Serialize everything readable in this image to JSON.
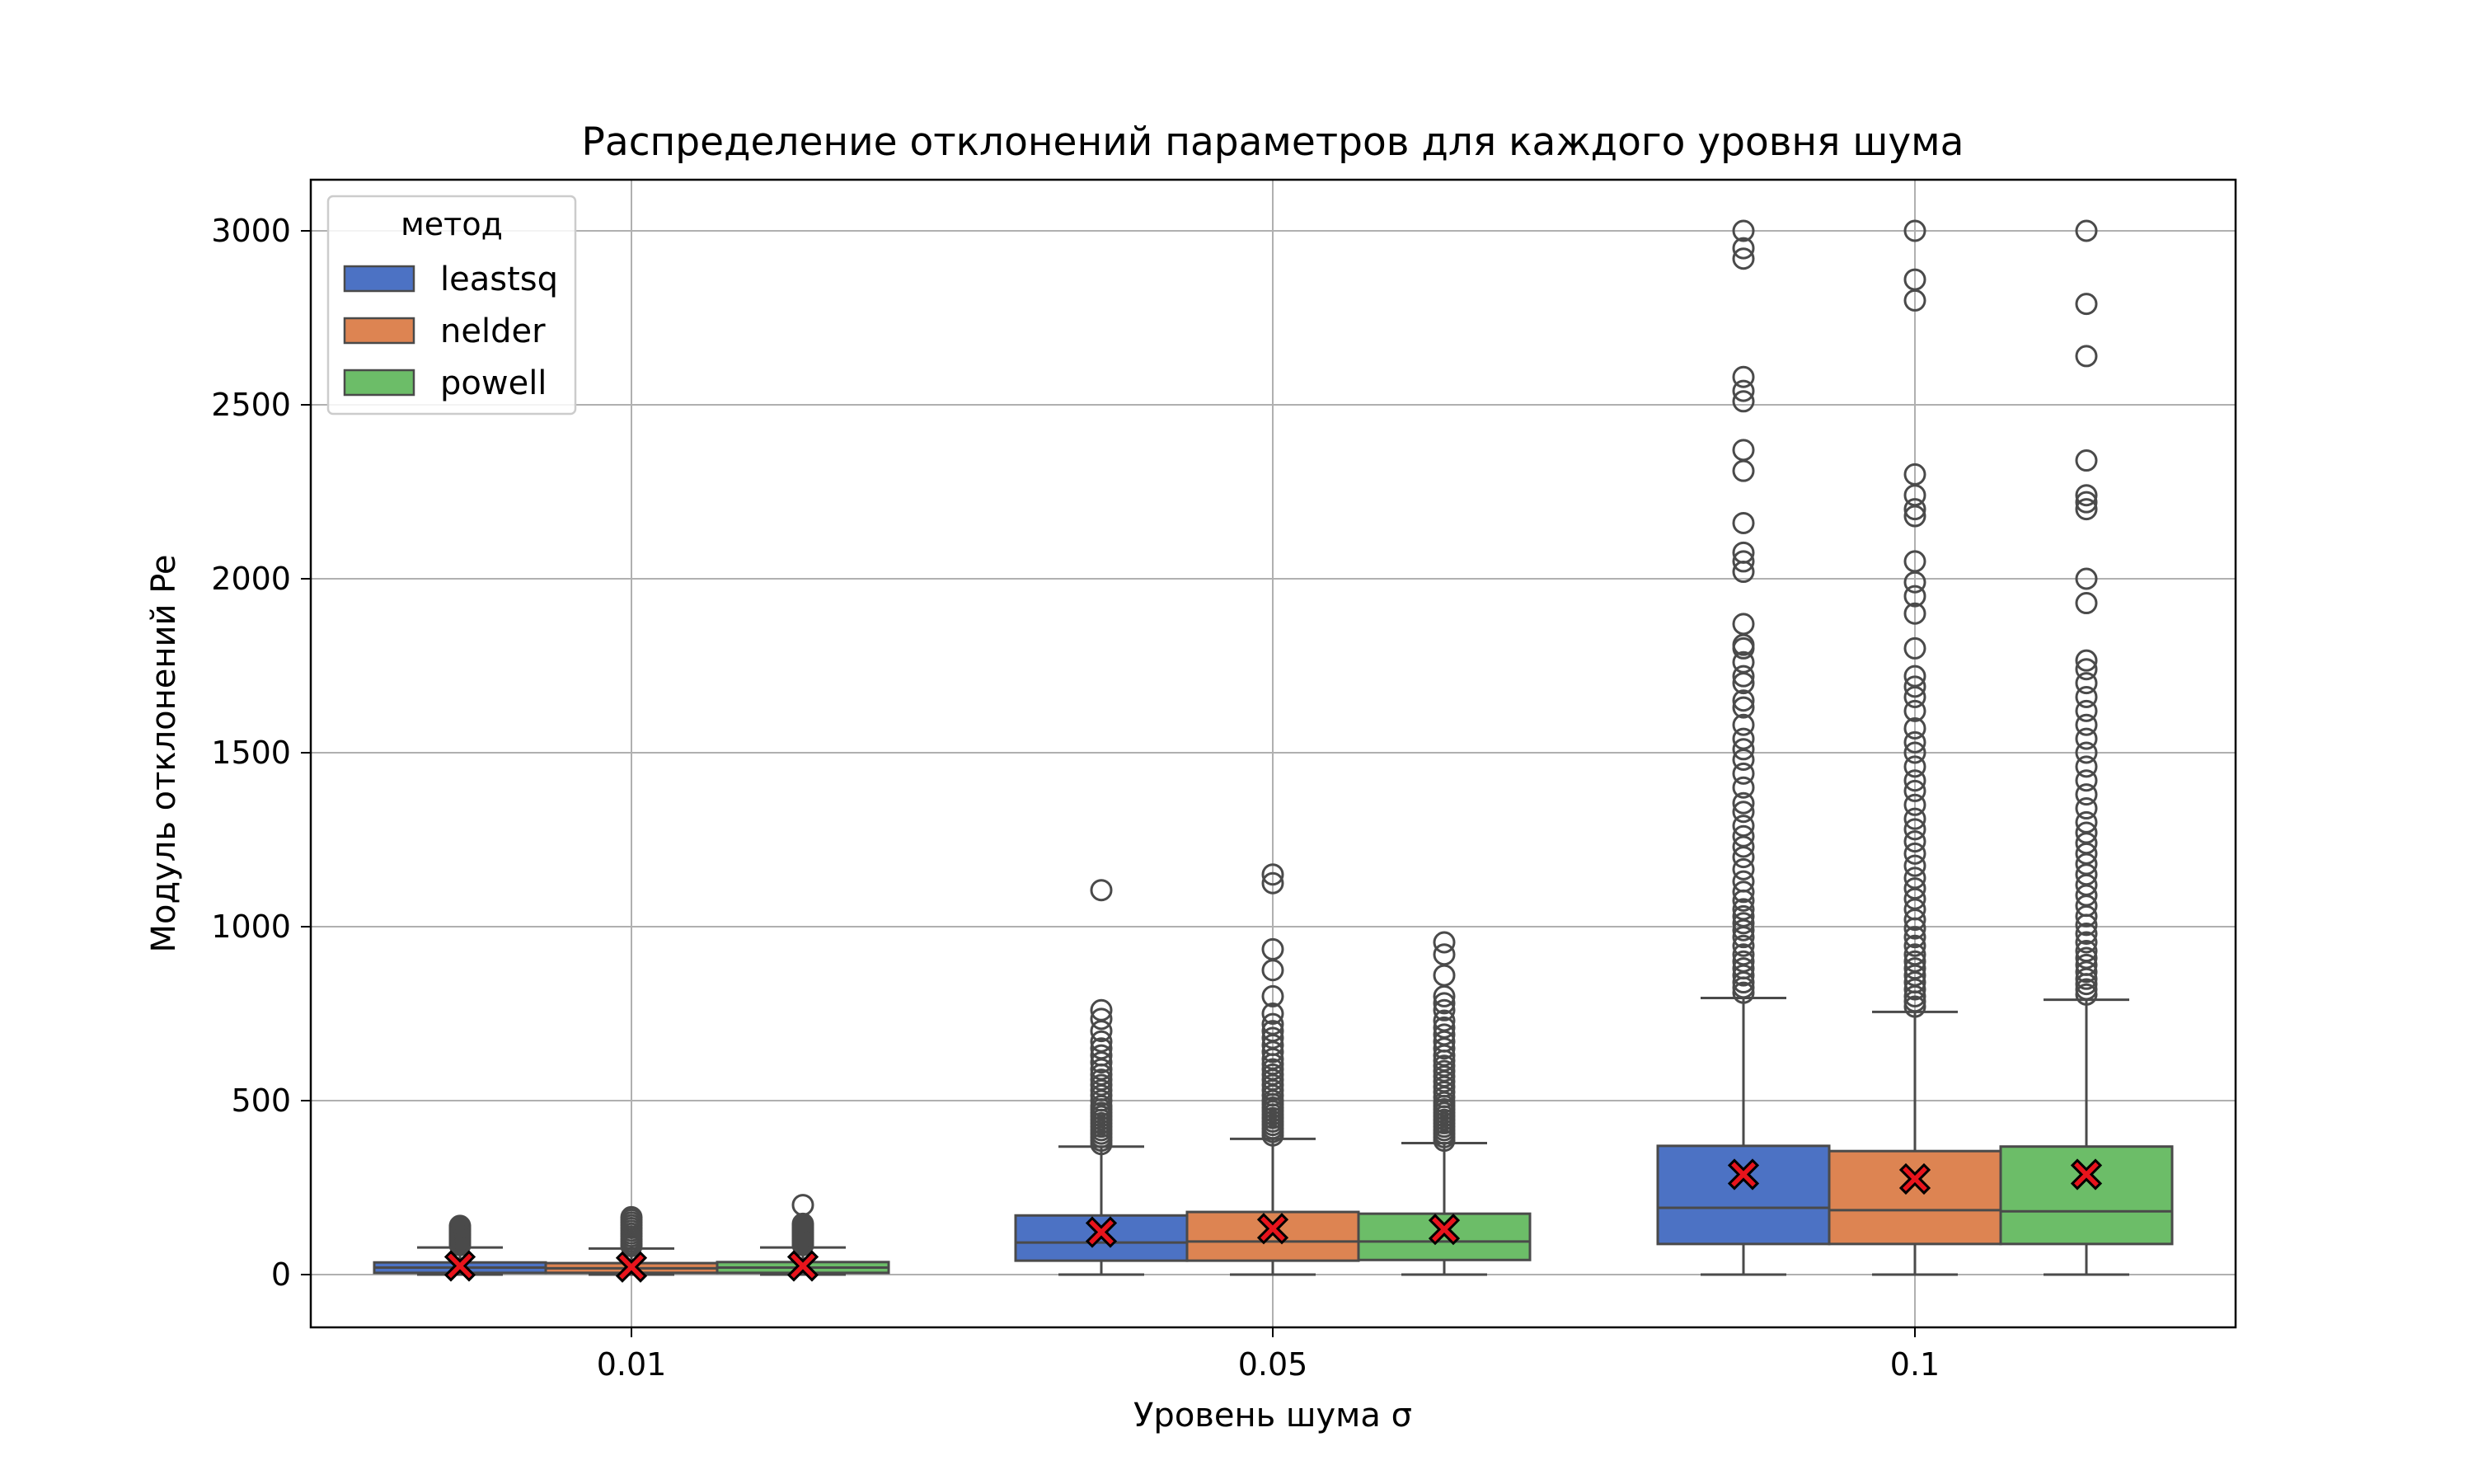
{
  "chart_data": {
    "type": "box",
    "title": "Распределение отклонений параметров для каждого уровня шума",
    "xlabel": "Уровень шума σ",
    "ylabel": "Модуль отклонений Pe",
    "categories": [
      "0.01",
      "0.05",
      "0.1"
    ],
    "ylim": [
      -150,
      3150
    ],
    "yticks": [
      0,
      500,
      1000,
      1500,
      2000,
      2500,
      3000
    ],
    "grid": true,
    "legend": {
      "title": "метод",
      "position": "top-left"
    },
    "series": [
      {
        "name": "leastsq",
        "color": "#4c72c4",
        "boxes": [
          {
            "whisker_low": 0,
            "q1": 5,
            "median": 20,
            "q3": 35,
            "whisker_high": 78,
            "mean": 25,
            "outliers": [
              85,
              90,
              95,
              100,
              104,
              108,
              112,
              116,
              120,
              124,
              128,
              132,
              136,
              140
            ]
          },
          {
            "whisker_low": 0,
            "q1": 40,
            "median": 92,
            "q3": 170,
            "whisker_high": 368,
            "mean": 122,
            "outliers": [
              375,
              385,
              395,
              405,
              415,
              425,
              435,
              445,
              455,
              465,
              475,
              485,
              500,
              515,
              530,
              545,
              560,
              575,
              590,
              610,
              630,
              650,
              670,
              700,
              735,
              760,
              1105
            ]
          },
          {
            "whisker_low": 0,
            "q1": 88,
            "median": 192,
            "q3": 370,
            "whisker_high": 795,
            "mean": 288,
            "outliers": [
              810,
              825,
              840,
              860,
              880,
              900,
              920,
              945,
              970,
              990,
              1010,
              1030,
              1050,
              1075,
              1100,
              1130,
              1165,
              1200,
              1230,
              1260,
              1290,
              1330,
              1355,
              1400,
              1440,
              1480,
              1510,
              1540,
              1580,
              1630,
              1650,
              1700,
              1720,
              1760,
              1800,
              1810,
              1870,
              2020,
              2050,
              2075,
              2160,
              2310,
              2370,
              2510,
              2540,
              2580,
              2920,
              2950,
              3000
            ]
          }
        ]
      },
      {
        "name": "nelder",
        "color": "#dd8452",
        "boxes": [
          {
            "whisker_low": 0,
            "q1": 5,
            "median": 18,
            "q3": 33,
            "whisker_high": 75,
            "mean": 22,
            "outliers": [
              82,
              88,
              95,
              102,
              110,
              118,
              126,
              134,
              142,
              150,
              158,
              165
            ]
          },
          {
            "whisker_low": 0,
            "q1": 40,
            "median": 95,
            "q3": 180,
            "whisker_high": 390,
            "mean": 132,
            "outliers": [
              400,
              410,
              420,
              430,
              440,
              450,
              460,
              470,
              480,
              490,
              500,
              515,
              530,
              545,
              560,
              575,
              590,
              605,
              620,
              640,
              660,
              680,
              700,
              720,
              750,
              800,
              875,
              935,
              1125,
              1150
            ]
          },
          {
            "whisker_low": 0,
            "q1": 88,
            "median": 185,
            "q3": 355,
            "whisker_high": 755,
            "mean": 275,
            "outliers": [
              770,
              785,
              800,
              820,
              840,
              860,
              880,
              900,
              920,
              945,
              970,
              995,
              1020,
              1050,
              1080,
              1110,
              1140,
              1175,
              1210,
              1245,
              1280,
              1310,
              1350,
              1390,
              1420,
              1460,
              1500,
              1530,
              1570,
              1620,
              1660,
              1690,
              1720,
              1800,
              1900,
              1950,
              1990,
              2050,
              2180,
              2200,
              2240,
              2300,
              2800,
              2860,
              3000
            ]
          }
        ]
      },
      {
        "name": "powell",
        "color": "#6cbd68",
        "boxes": [
          {
            "whisker_low": 0,
            "q1": 5,
            "median": 20,
            "q3": 36,
            "whisker_high": 78,
            "mean": 25,
            "outliers": [
              85,
              92,
              98,
              104,
              110,
              116,
              122,
              128,
              134,
              140,
              146,
              200
            ]
          },
          {
            "whisker_low": 0,
            "q1": 42,
            "median": 95,
            "q3": 175,
            "whisker_high": 378,
            "mean": 130,
            "outliers": [
              385,
              395,
              405,
              415,
              425,
              435,
              445,
              455,
              465,
              475,
              485,
              495,
              510,
              525,
              540,
              555,
              570,
              585,
              600,
              615,
              630,
              650,
              670,
              690,
              710,
              730,
              760,
              780,
              800,
              860,
              920,
              955
            ]
          },
          {
            "whisker_low": 0,
            "q1": 88,
            "median": 182,
            "q3": 368,
            "whisker_high": 790,
            "mean": 288,
            "outliers": [
              805,
              820,
              835,
              850,
              870,
              890,
              910,
              930,
              955,
              980,
              1005,
              1030,
              1060,
              1090,
              1120,
              1150,
              1180,
              1210,
              1240,
              1270,
              1300,
              1340,
              1380,
              1420,
              1460,
              1500,
              1540,
              1580,
              1620,
              1660,
              1700,
              1740,
              1765,
              1930,
              2000,
              2200,
              2220,
              2240,
              2340,
              2640,
              2790,
              3000
            ]
          }
        ]
      }
    ]
  }
}
